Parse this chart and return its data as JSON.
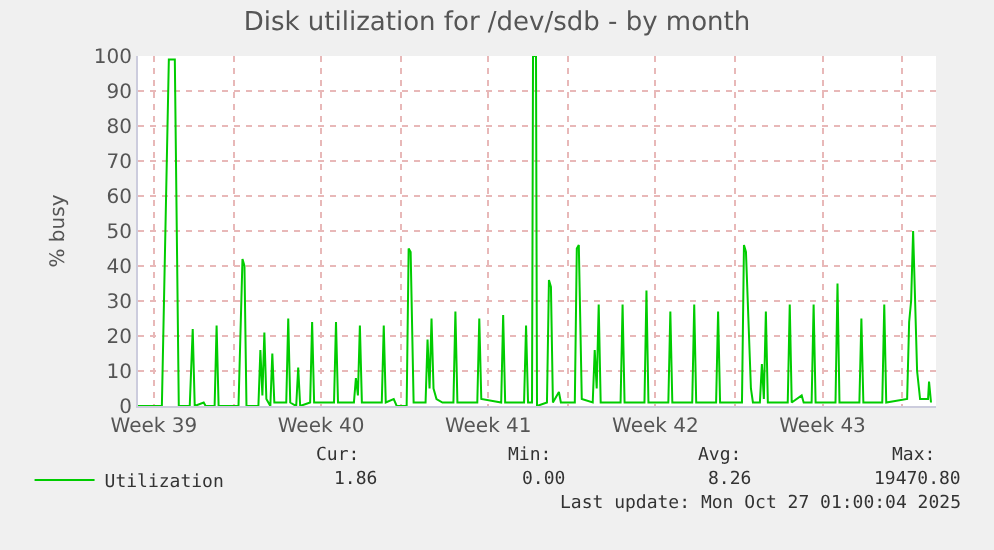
{
  "chart_data": {
    "type": "line",
    "title": "Disk utilization for /dev/sdb - by month",
    "ylabel": "% busy",
    "x": [
      "2025-09-24T00:00",
      "2025-09-25T00:00",
      "2025-09-25T07:00",
      "2025-09-25T13:00",
      "2025-09-25T17:00",
      "2025-09-26T04:00",
      "2025-09-26T07:00",
      "2025-09-26T09:00",
      "2025-09-26T18:00",
      "2025-09-26T20:00",
      "2025-09-27T05:00",
      "2025-09-27T07:00",
      "2025-09-27T09:00",
      "2025-09-28T05:00",
      "2025-09-28T09:00",
      "2025-09-28T11:00",
      "2025-09-28T13:00",
      "2025-09-29T01:00",
      "2025-09-29T03:00",
      "2025-09-29T05:00",
      "2025-09-29T07:00",
      "2025-09-29T09:00",
      "2025-09-29T13:00",
      "2025-09-29T15:00",
      "2025-09-29T17:00",
      "2025-09-30T05:00",
      "2025-09-30T07:00",
      "2025-09-30T09:00",
      "2025-09-30T15:00",
      "2025-09-30T17:00",
      "2025-09-30T19:00",
      "2025-10-01T05:00",
      "2025-10-01T07:00",
      "2025-10-01T09:00",
      "2025-10-02T05:00",
      "2025-10-02T07:00",
      "2025-10-02T09:00",
      "2025-10-03T01:00",
      "2025-10-03T03:00",
      "2025-10-03T05:00",
      "2025-10-03T07:00",
      "2025-10-03T09:00",
      "2025-10-04T05:00",
      "2025-10-04T07:00",
      "2025-10-04T09:00",
      "2025-10-04T17:00",
      "2025-10-04T20:00",
      "2025-10-05T06:00",
      "2025-10-05T08:00",
      "2025-10-05T10:00",
      "2025-10-05T13:00",
      "2025-10-06T01:00",
      "2025-10-06T03:00",
      "2025-10-06T05:00",
      "2025-10-06T07:00",
      "2025-10-06T09:00",
      "2025-10-06T12:00",
      "2025-10-06T18:00",
      "2025-10-07T05:00",
      "2025-10-07T07:00",
      "2025-10-07T09:00",
      "2025-10-08T05:00",
      "2025-10-08T07:00",
      "2025-10-08T09:00",
      "2025-10-09T05:00",
      "2025-10-09T07:00",
      "2025-10-09T09:00",
      "2025-10-10T04:00",
      "2025-10-10T06:00",
      "2025-10-10T08:00",
      "2025-10-10T12:00",
      "2025-10-10T13:00",
      "2025-10-10T16:00",
      "2025-10-10T17:00",
      "2025-10-11T03:00",
      "2025-10-11T05:00",
      "2025-10-11T07:00",
      "2025-10-11T09:00",
      "2025-10-11T15:00",
      "2025-10-11T17:00",
      "2025-10-12T07:00",
      "2025-10-12T09:00",
      "2025-10-12T11:00",
      "2025-10-12T14:00",
      "2025-10-13T01:00",
      "2025-10-13T03:00",
      "2025-10-13T05:00",
      "2025-10-13T07:00",
      "2025-10-13T09:00",
      "2025-10-14T05:00",
      "2025-10-14T07:00",
      "2025-10-14T09:00",
      "2025-10-15T05:00",
      "2025-10-15T07:00",
      "2025-10-15T09:00",
      "2025-10-16T05:00",
      "2025-10-16T07:00",
      "2025-10-16T09:00",
      "2025-10-17T05:00",
      "2025-10-17T07:00",
      "2025-10-17T09:00",
      "2025-10-18T05:00",
      "2025-10-18T07:00",
      "2025-10-18T09:00",
      "2025-10-19T07:00",
      "2025-10-19T09:00",
      "2025-10-19T11:00",
      "2025-10-19T16:00",
      "2025-10-19T18:00",
      "2025-10-20T01:00",
      "2025-10-20T03:00",
      "2025-10-20T05:00",
      "2025-10-20T07:00",
      "2025-10-20T09:00",
      "2025-10-21T05:00",
      "2025-10-21T07:00",
      "2025-10-21T09:00",
      "2025-10-21T19:00",
      "2025-10-21T21:00",
      "2025-10-22T05:00",
      "2025-10-22T07:00",
      "2025-10-22T09:00",
      "2025-10-23T05:00",
      "2025-10-23T07:00",
      "2025-10-23T09:00",
      "2025-10-24T05:00",
      "2025-10-24T07:00",
      "2025-10-24T09:00",
      "2025-10-25T04:00",
      "2025-10-25T06:00",
      "2025-10-25T08:00",
      "2025-10-26T05:00",
      "2025-10-26T07:00",
      "2025-10-26T09:00",
      "2025-10-26T11:00",
      "2025-10-26T15:00",
      "2025-10-26T18:00",
      "2025-10-27T02:00",
      "2025-10-27T03:00",
      "2025-10-27T05:00"
    ],
    "series": [
      {
        "name": "Utilization",
        "color": "#00cc00",
        "values": [
          0,
          0,
          99,
          99,
          0,
          0,
          22,
          0,
          1,
          0,
          0,
          23,
          0,
          0,
          42,
          40,
          0,
          0,
          16,
          3,
          21,
          2,
          0,
          15,
          1,
          1,
          25,
          1,
          0,
          11,
          0,
          1,
          24,
          1,
          1,
          24,
          1,
          1,
          8,
          3,
          23,
          1,
          1,
          23,
          1,
          2,
          0,
          0,
          45,
          44,
          1,
          1,
          19,
          5,
          25,
          5,
          2,
          1,
          1,
          27,
          1,
          1,
          25,
          2,
          1,
          26,
          1,
          1,
          23,
          1,
          1,
          100,
          100,
          0,
          1,
          36,
          34,
          1,
          4,
          1,
          1,
          45,
          46,
          2,
          1,
          16,
          5,
          29,
          1,
          1,
          29,
          1,
          1,
          33,
          1,
          1,
          27,
          1,
          1,
          29,
          1,
          1,
          27,
          1,
          1,
          46,
          44,
          5,
          1,
          1,
          12,
          2,
          27,
          1,
          1,
          29,
          1,
          3,
          1,
          1,
          29,
          1,
          1,
          35,
          1,
          1,
          25,
          1,
          1,
          29,
          1,
          2,
          24,
          30,
          50,
          10,
          2,
          2,
          7,
          1
        ]
      }
    ],
    "xlim": [
      "2025-09-24T00:00",
      "2025-10-27T10:00"
    ],
    "xticks": [
      {
        "value": "2025-09-24T16:00",
        "label": "Week 39"
      },
      {
        "value": "2025-09-28T00:00",
        "label": null
      },
      {
        "value": "2025-10-01T16:00",
        "label": "Week 40"
      },
      {
        "value": "2025-10-05T00:00",
        "label": null
      },
      {
        "value": "2025-10-08T16:00",
        "label": "Week 41"
      },
      {
        "value": "2025-10-12T00:00",
        "label": null
      },
      {
        "value": "2025-10-15T16:00",
        "label": "Week 42"
      },
      {
        "value": "2025-10-19T00:00",
        "label": null
      },
      {
        "value": "2025-10-22T16:00",
        "label": "Week 43"
      },
      {
        "value": "2025-10-26T00:00",
        "label": null
      }
    ],
    "ylim": [
      0,
      100
    ],
    "yticks": [
      0,
      10,
      20,
      30,
      40,
      50,
      60,
      70,
      80,
      90,
      100
    ],
    "grid": true,
    "legend": "bottom left",
    "annotations": [
      "Cur:",
      "Min:",
      "Avg:",
      "Max:",
      "1.86",
      "0.00",
      "8.26",
      "19470.80",
      "Last update: Mon Oct 27 01:00:04 2025"
    ]
  }
}
